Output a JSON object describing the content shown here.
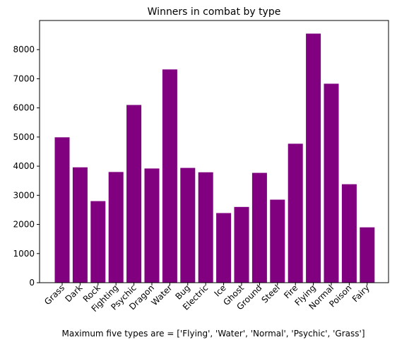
{
  "chart_data": {
    "type": "bar",
    "title": "Winners in combat by type",
    "xlabel": "Maximum five types are = ['Flying', 'Water', 'Normal', 'Psychic', 'Grass']",
    "ylabel": "",
    "categories": [
      "Grass",
      "Dark",
      "Rock",
      "Fighting",
      "Psychic",
      "Dragon",
      "Water",
      "Bug",
      "Electric",
      "Ice",
      "Ghost",
      "Ground",
      "Steel",
      "Fire",
      "Flying",
      "Normal",
      "Poison",
      "Fairy"
    ],
    "values": [
      4990,
      3960,
      2800,
      3800,
      6100,
      3920,
      7320,
      3940,
      3790,
      2390,
      2600,
      3770,
      2850,
      4770,
      8550,
      6830,
      3380,
      1900
    ],
    "ylim": [
      0,
      9000
    ],
    "yticks": [
      0,
      1000,
      2000,
      3000,
      4000,
      5000,
      6000,
      7000,
      8000
    ],
    "bar_color": "#800080",
    "grid": false,
    "legend": "none"
  }
}
